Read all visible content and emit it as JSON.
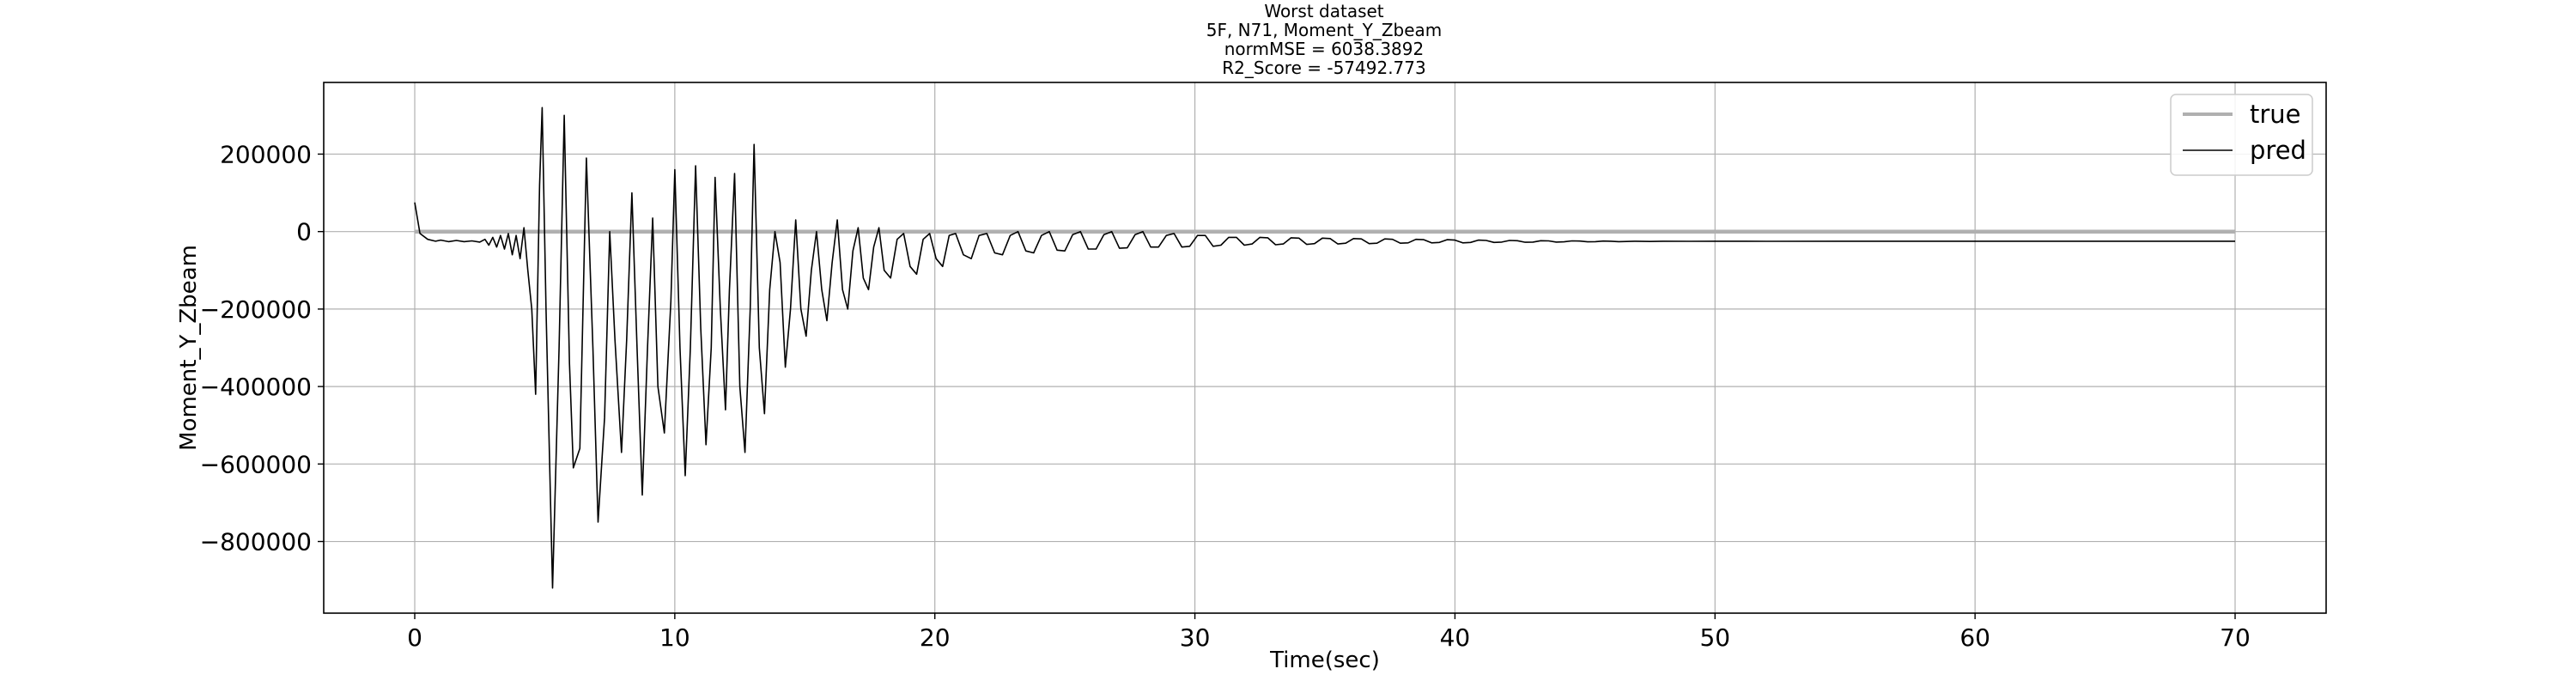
{
  "chart_data": {
    "type": "line",
    "title_lines": [
      "Worst dataset",
      "5F, N71, Moment_Y_Zbeam",
      "normMSE = 6038.3892",
      "R2_Score = -57492.773"
    ],
    "xlabel": "Time(sec)",
    "ylabel": "Moment_Y_Zbeam",
    "xlim": [
      -3.5,
      73.5
    ],
    "ylim": [
      -985000,
      385000
    ],
    "x_ticks": [
      0,
      10,
      20,
      30,
      40,
      50,
      60,
      70
    ],
    "y_ticks": [
      200000,
      0,
      -200000,
      -400000,
      -600000,
      -800000
    ],
    "x_tick_labels": [
      "0",
      "10",
      "20",
      "30",
      "40",
      "50",
      "60",
      "70"
    ],
    "y_tick_labels": [
      "200000",
      "0",
      "−200000",
      "−400000",
      "−600000",
      "−800000"
    ],
    "grid": true,
    "legend_position": "top-right",
    "series": [
      {
        "name": "true",
        "color": "#b0b0b0",
        "points": [
          [
            0,
            0
          ],
          [
            70,
            0
          ]
        ]
      },
      {
        "name": "pred",
        "color": "#000000",
        "points": [
          [
            0.0,
            75000
          ],
          [
            0.2,
            -5000
          ],
          [
            0.5,
            -20000
          ],
          [
            0.8,
            -25000
          ],
          [
            1.0,
            -22000
          ],
          [
            1.3,
            -26000
          ],
          [
            1.6,
            -23000
          ],
          [
            1.9,
            -26000
          ],
          [
            2.2,
            -24000
          ],
          [
            2.5,
            -27000
          ],
          [
            2.7,
            -20000
          ],
          [
            2.85,
            -35000
          ],
          [
            3.0,
            -15000
          ],
          [
            3.15,
            -40000
          ],
          [
            3.3,
            -10000
          ],
          [
            3.45,
            -45000
          ],
          [
            3.6,
            -5000
          ],
          [
            3.75,
            -60000
          ],
          [
            3.9,
            -10000
          ],
          [
            4.05,
            -70000
          ],
          [
            4.2,
            10000
          ],
          [
            4.35,
            -100000
          ],
          [
            4.5,
            -200000
          ],
          [
            4.65,
            -420000
          ],
          [
            4.8,
            120000
          ],
          [
            4.9,
            320000
          ],
          [
            5.05,
            -200000
          ],
          [
            5.3,
            -920000
          ],
          [
            5.55,
            -300000
          ],
          [
            5.75,
            300000
          ],
          [
            5.95,
            -340000
          ],
          [
            6.1,
            -610000
          ],
          [
            6.35,
            -560000
          ],
          [
            6.6,
            190000
          ],
          [
            6.85,
            -300000
          ],
          [
            7.05,
            -750000
          ],
          [
            7.3,
            -480000
          ],
          [
            7.5,
            0
          ],
          [
            7.7,
            -280000
          ],
          [
            7.95,
            -570000
          ],
          [
            8.15,
            -280000
          ],
          [
            8.35,
            100000
          ],
          [
            8.55,
            -300000
          ],
          [
            8.75,
            -680000
          ],
          [
            8.95,
            -300000
          ],
          [
            9.15,
            35000
          ],
          [
            9.35,
            -400000
          ],
          [
            9.6,
            -520000
          ],
          [
            9.85,
            -180000
          ],
          [
            10.0,
            160000
          ],
          [
            10.2,
            -300000
          ],
          [
            10.4,
            -630000
          ],
          [
            10.6,
            -300000
          ],
          [
            10.8,
            170000
          ],
          [
            11.0,
            -250000
          ],
          [
            11.2,
            -550000
          ],
          [
            11.4,
            -300000
          ],
          [
            11.55,
            140000
          ],
          [
            11.75,
            -200000
          ],
          [
            11.95,
            -460000
          ],
          [
            12.1,
            -150000
          ],
          [
            12.3,
            150000
          ],
          [
            12.5,
            -400000
          ],
          [
            12.7,
            -570000
          ],
          [
            12.9,
            -200000
          ],
          [
            13.05,
            225000
          ],
          [
            13.25,
            -300000
          ],
          [
            13.45,
            -470000
          ],
          [
            13.65,
            -150000
          ],
          [
            13.85,
            0
          ],
          [
            14.05,
            -80000
          ],
          [
            14.25,
            -350000
          ],
          [
            14.45,
            -200000
          ],
          [
            14.65,
            30000
          ],
          [
            14.85,
            -200000
          ],
          [
            15.05,
            -270000
          ],
          [
            15.25,
            -100000
          ],
          [
            15.45,
            0
          ],
          [
            15.65,
            -150000
          ],
          [
            15.85,
            -230000
          ],
          [
            16.05,
            -80000
          ],
          [
            16.25,
            30000
          ],
          [
            16.45,
            -150000
          ],
          [
            16.65,
            -200000
          ],
          [
            16.85,
            -50000
          ],
          [
            17.05,
            10000
          ],
          [
            17.25,
            -120000
          ],
          [
            17.45,
            -150000
          ],
          [
            17.65,
            -40000
          ],
          [
            17.85,
            10000
          ],
          [
            18.05,
            -100000
          ],
          [
            18.3,
            -120000
          ],
          [
            18.55,
            -20000
          ],
          [
            18.8,
            -5000
          ],
          [
            19.05,
            -90000
          ],
          [
            19.3,
            -110000
          ],
          [
            19.55,
            -20000
          ],
          [
            19.8,
            -5000
          ],
          [
            20.05,
            -70000
          ],
          [
            20.3,
            -90000
          ],
          [
            20.55,
            -10000
          ],
          [
            20.8,
            -5000
          ],
          [
            21.1,
            -60000
          ],
          [
            21.4,
            -70000
          ],
          [
            21.7,
            -10000
          ],
          [
            22.0,
            -5000
          ],
          [
            22.3,
            -55000
          ],
          [
            22.6,
            -60000
          ],
          [
            22.9,
            -10000
          ],
          [
            23.2,
            0
          ],
          [
            23.5,
            -50000
          ],
          [
            23.8,
            -55000
          ],
          [
            24.1,
            -10000
          ],
          [
            24.4,
            0
          ],
          [
            24.7,
            -48000
          ],
          [
            25.0,
            -50000
          ],
          [
            25.3,
            -8000
          ],
          [
            25.6,
            0
          ],
          [
            25.9,
            -45000
          ],
          [
            26.2,
            -45000
          ],
          [
            26.5,
            -8000
          ],
          [
            26.8,
            0
          ],
          [
            27.1,
            -43000
          ],
          [
            27.4,
            -42000
          ],
          [
            27.7,
            -8000
          ],
          [
            28.0,
            0
          ],
          [
            28.3,
            -40000
          ],
          [
            28.6,
            -40000
          ],
          [
            28.9,
            -10000
          ],
          [
            29.2,
            -5000
          ],
          [
            29.5,
            -40000
          ],
          [
            29.8,
            -38000
          ],
          [
            30.1,
            -10000
          ],
          [
            30.4,
            -10000
          ],
          [
            30.7,
            -38000
          ],
          [
            31.0,
            -35000
          ],
          [
            31.3,
            -15000
          ],
          [
            31.6,
            -15000
          ],
          [
            31.9,
            -35000
          ],
          [
            32.2,
            -32000
          ],
          [
            32.5,
            -15000
          ],
          [
            32.8,
            -16000
          ],
          [
            33.1,
            -34000
          ],
          [
            33.4,
            -32000
          ],
          [
            33.7,
            -16000
          ],
          [
            34.0,
            -17000
          ],
          [
            34.3,
            -33000
          ],
          [
            34.6,
            -31000
          ],
          [
            34.9,
            -17000
          ],
          [
            35.2,
            -18000
          ],
          [
            35.5,
            -32000
          ],
          [
            35.8,
            -30000
          ],
          [
            36.1,
            -18000
          ],
          [
            36.4,
            -19000
          ],
          [
            36.7,
            -31000
          ],
          [
            37.0,
            -30000
          ],
          [
            37.3,
            -19000
          ],
          [
            37.6,
            -20000
          ],
          [
            37.9,
            -30000
          ],
          [
            38.2,
            -29000
          ],
          [
            38.5,
            -20000
          ],
          [
            38.8,
            -21000
          ],
          [
            39.1,
            -29000
          ],
          [
            39.4,
            -28000
          ],
          [
            39.7,
            -21000
          ],
          [
            40.0,
            -22000
          ],
          [
            40.3,
            -29000
          ],
          [
            40.6,
            -28000
          ],
          [
            40.9,
            -22000
          ],
          [
            41.2,
            -23000
          ],
          [
            41.5,
            -28000
          ],
          [
            41.8,
            -27000
          ],
          [
            42.1,
            -23000
          ],
          [
            42.4,
            -23500
          ],
          [
            42.7,
            -27500
          ],
          [
            43.0,
            -27000
          ],
          [
            43.3,
            -23500
          ],
          [
            43.6,
            -24000
          ],
          [
            43.9,
            -27000
          ],
          [
            44.2,
            -26500
          ],
          [
            44.5,
            -24000
          ],
          [
            44.8,
            -24500
          ],
          [
            45.1,
            -26500
          ],
          [
            45.4,
            -26000
          ],
          [
            45.7,
            -24500
          ],
          [
            46.0,
            -25000
          ],
          [
            46.3,
            -26000
          ],
          [
            46.6,
            -25500
          ],
          [
            46.9,
            -25000
          ],
          [
            47.5,
            -25500
          ],
          [
            48.0,
            -25000
          ],
          [
            49.0,
            -25200
          ],
          [
            50.0,
            -25000
          ],
          [
            52.0,
            -25100
          ],
          [
            55.0,
            -25000
          ],
          [
            60.0,
            -25000
          ],
          [
            65.0,
            -25000
          ],
          [
            70.0,
            -25000
          ]
        ]
      }
    ]
  }
}
